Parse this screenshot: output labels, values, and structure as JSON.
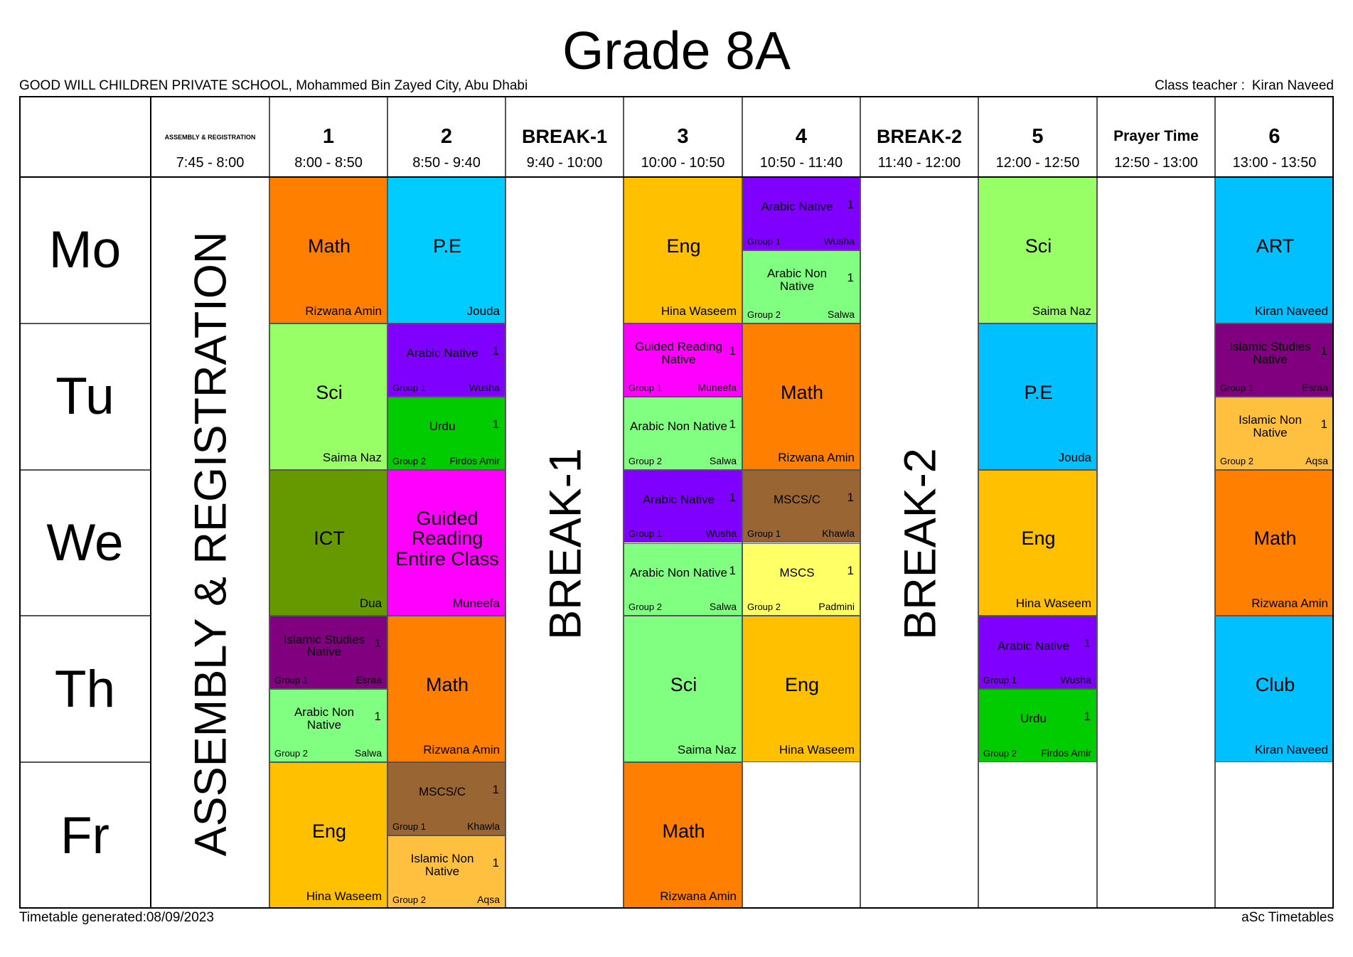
{
  "header": {
    "title": "Grade 8A",
    "school": "GOOD WILL CHILDREN PRIVATE SCHOOL, Mohammed Bin Zayed City, Abu Dhabi",
    "class_teacher_label": "Class teacher :",
    "class_teacher": "Kiran Naveed"
  },
  "footer": {
    "generated": "Timetable generated:08/09/2023",
    "brand": "aSc Timetables"
  },
  "columns": [
    {
      "name": "ASSEMBLY & REGISTRATION",
      "time": "7:45 - 8:00",
      "banner": "ASSEMBLY & REGISTRATION"
    },
    {
      "name": "1",
      "time": "8:00 - 8:50"
    },
    {
      "name": "2",
      "time": "8:50 - 9:40"
    },
    {
      "name": "BREAK-1",
      "time": "9:40 - 10:00",
      "banner": "BREAK-1"
    },
    {
      "name": "3",
      "time": "10:00 - 10:50"
    },
    {
      "name": "4",
      "time": "10:50 - 11:40"
    },
    {
      "name": "BREAK-2",
      "time": "11:40 - 12:00",
      "banner": "BREAK-2"
    },
    {
      "name": "5",
      "time": "12:00 - 12:50"
    },
    {
      "name": "Prayer Time",
      "time": "12:50 - 13:00"
    },
    {
      "name": "6",
      "time": "13:00 - 13:50"
    }
  ],
  "days": [
    {
      "name": "Mo",
      "slots": [
        null,
        [
          {
            "subject": "Math",
            "teacher": "Rizwana Amin",
            "color": "#ff8000"
          }
        ],
        [
          {
            "subject": "P.E",
            "teacher": "Jouda",
            "color": "#00ccff"
          }
        ],
        null,
        [
          {
            "subject": "Eng",
            "teacher": "Hina Waseem",
            "color": "#ffc000"
          }
        ],
        [
          {
            "subject": "Arabic Native",
            "count": "1",
            "group": "Group 1",
            "teacher": "Wusha",
            "color": "#8000ff"
          },
          {
            "subject": "Arabic Non Native",
            "count": "1",
            "group": "Group 2",
            "teacher": "Salwa",
            "color": "#80ff80"
          }
        ],
        null,
        [
          {
            "subject": "Sci",
            "teacher": "Saima Naz",
            "color": "#99ff66"
          }
        ],
        null,
        [
          {
            "subject": "ART",
            "teacher": "Kiran Naveed",
            "color": "#00c0ff"
          }
        ]
      ]
    },
    {
      "name": "Tu",
      "slots": [
        null,
        [
          {
            "subject": "Sci",
            "teacher": "Saima Naz",
            "color": "#99ff66"
          }
        ],
        [
          {
            "subject": "Arabic Native",
            "count": "1",
            "group": "Group 1",
            "teacher": "Wusha",
            "color": "#8000ff"
          },
          {
            "subject": "Urdu",
            "count": "1",
            "group": "Group 2",
            "teacher": "Firdos Amir",
            "color": "#00cc00"
          }
        ],
        null,
        [
          {
            "subject": "Guided Reading Native",
            "count": "1",
            "group": "Group 1",
            "teacher": "Muneefa",
            "color": "#ff00ff"
          },
          {
            "subject": "Arabic Non Native",
            "count": "1",
            "group": "Group 2",
            "teacher": "Salwa",
            "color": "#80ff80"
          }
        ],
        [
          {
            "subject": "Math",
            "teacher": "Rizwana Amin",
            "color": "#ff8000"
          }
        ],
        null,
        [
          {
            "subject": "P.E",
            "teacher": "Jouda",
            "color": "#00c0ff"
          }
        ],
        null,
        [
          {
            "subject": "Islamic Studies Native",
            "count": "1",
            "group": "Group 1",
            "teacher": "Esraa",
            "color": "#800080"
          },
          {
            "subject": "Islamic Non Native",
            "count": "1",
            "group": "Group 2",
            "teacher": "Aqsa",
            "color": "#ffc040"
          }
        ]
      ]
    },
    {
      "name": "We",
      "slots": [
        null,
        [
          {
            "subject": "ICT",
            "teacher": "Dua",
            "color": "#669900"
          }
        ],
        [
          {
            "subject": "Guided Reading Entire Class",
            "teacher": "Muneefa",
            "color": "#ff00ff"
          }
        ],
        null,
        [
          {
            "subject": "Arabic Native",
            "count": "1",
            "group": "Group 1",
            "teacher": "Wusha",
            "color": "#8000ff"
          },
          {
            "subject": "Arabic Non Native",
            "count": "1",
            "group": "Group 2",
            "teacher": "Salwa",
            "color": "#80ff80"
          }
        ],
        [
          {
            "subject": "MSCS/C",
            "count": "1",
            "group": "Group 1",
            "teacher": "Khawla",
            "color": "#996633"
          },
          {
            "subject": "MSCS",
            "count": "1",
            "group": "Group 2",
            "teacher": "Padmini",
            "color": "#ffff66"
          }
        ],
        null,
        [
          {
            "subject": "Eng",
            "teacher": "Hina Waseem",
            "color": "#ffc000"
          }
        ],
        null,
        [
          {
            "subject": "Math",
            "teacher": "Rizwana Amin",
            "color": "#ff8000"
          }
        ]
      ]
    },
    {
      "name": "Th",
      "slots": [
        null,
        [
          {
            "subject": "Islamic Studies Native",
            "count": "1",
            "group": "Group 1",
            "teacher": "Esraa",
            "color": "#800080"
          },
          {
            "subject": "Arabic Non Native",
            "count": "1",
            "group": "Group 2",
            "teacher": "Salwa",
            "color": "#80ff80"
          }
        ],
        [
          {
            "subject": "Math",
            "teacher": "Rizwana Amin",
            "color": "#ff8000"
          }
        ],
        null,
        [
          {
            "subject": "Sci",
            "teacher": "Saima Naz",
            "color": "#80ff80"
          }
        ],
        [
          {
            "subject": "Eng",
            "teacher": "Hina Waseem",
            "color": "#ffc000"
          }
        ],
        null,
        [
          {
            "subject": "Arabic Native",
            "count": "1",
            "group": "Group 1",
            "teacher": "Wusha",
            "color": "#8000ff"
          },
          {
            "subject": "Urdu",
            "count": "1",
            "group": "Group 2",
            "teacher": "Firdos Amir",
            "color": "#00cc00"
          }
        ],
        null,
        [
          {
            "subject": "Club",
            "teacher": "Kiran Naveed",
            "color": "#00c0ff"
          }
        ]
      ]
    },
    {
      "name": "Fr",
      "slots": [
        null,
        [
          {
            "subject": "Eng",
            "teacher": "Hina Waseem",
            "color": "#ffc000"
          }
        ],
        [
          {
            "subject": "MSCS/C",
            "count": "1",
            "group": "Group 1",
            "teacher": "Khawla",
            "color": "#996633"
          },
          {
            "subject": "Islamic Non Native",
            "count": "1",
            "group": "Group 2",
            "teacher": "Aqsa",
            "color": "#ffc040"
          }
        ],
        null,
        [
          {
            "subject": "Math",
            "teacher": "Rizwana Amin",
            "color": "#ff8000"
          }
        ],
        [],
        null,
        [],
        null,
        []
      ]
    }
  ]
}
